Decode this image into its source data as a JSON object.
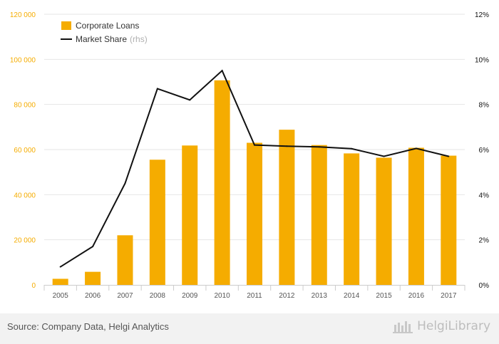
{
  "chart_data": {
    "type": "bar",
    "categories": [
      "2005",
      "2006",
      "2007",
      "2008",
      "2009",
      "2010",
      "2011",
      "2012",
      "2013",
      "2014",
      "2015",
      "2016",
      "2017"
    ],
    "series": [
      {
        "name": "Corporate Loans",
        "type": "bar",
        "axis": "left",
        "color": "#f5ac00",
        "values": [
          2700,
          5800,
          22000,
          55500,
          61800,
          90700,
          63000,
          68800,
          62000,
          58300,
          56400,
          60800,
          57300
        ]
      },
      {
        "name": "Market Share",
        "name_suffix": "(rhs)",
        "type": "line",
        "axis": "right",
        "color": "#111111",
        "values": [
          0.8,
          1.7,
          4.5,
          8.7,
          8.2,
          9.5,
          6.2,
          6.15,
          6.12,
          6.04,
          5.7,
          6.05,
          5.7
        ]
      }
    ],
    "y_left": {
      "min": 0,
      "max": 120000,
      "ticks": [
        0,
        20000,
        40000,
        60000,
        80000,
        100000,
        120000
      ],
      "tick_labels": [
        "0",
        "20 000",
        "40 000",
        "60 000",
        "80 000",
        "100 000",
        "120 000"
      ],
      "color": "#f5ac00"
    },
    "y_right": {
      "min": 0,
      "max": 12,
      "ticks": [
        0,
        2,
        4,
        6,
        8,
        10,
        12
      ],
      "tick_labels": [
        "0%",
        "2%",
        "4%",
        "6%",
        "8%",
        "10%",
        "12%"
      ],
      "color": "#111111"
    },
    "grid": true,
    "legend_position": "top-left"
  },
  "footer": {
    "source": "Source: Company Data, Helgi Analytics",
    "brand": "HelgiLibrary"
  }
}
